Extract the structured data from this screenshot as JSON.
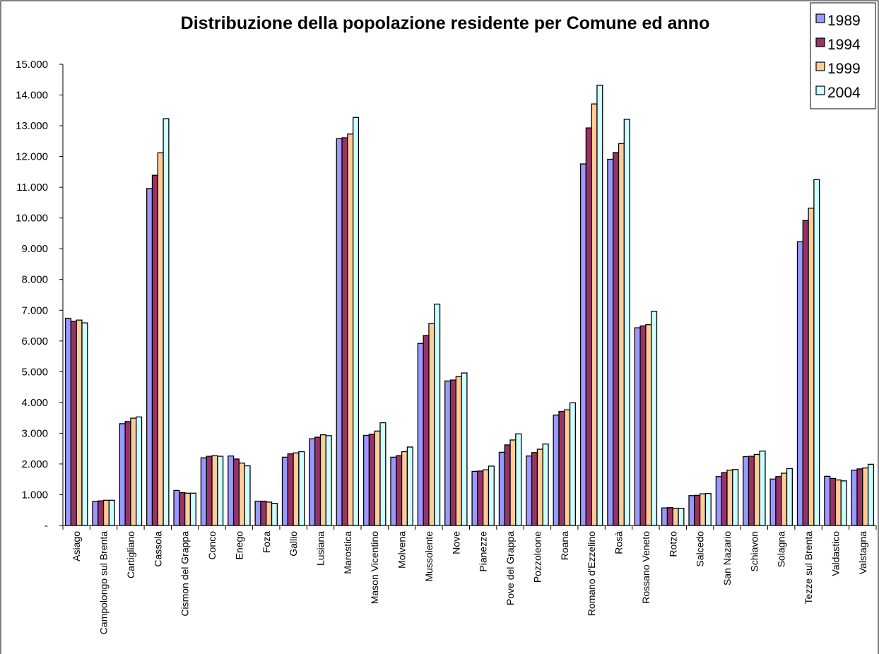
{
  "chart_data": {
    "type": "bar",
    "title": "Distribuzione della popolazione residente per Comune ed anno",
    "xlabel": "",
    "ylabel": "",
    "ylim": [
      0,
      15000
    ],
    "ytick_values": [
      0,
      1000,
      2000,
      3000,
      4000,
      5000,
      6000,
      7000,
      8000,
      9000,
      10000,
      11000,
      12000,
      13000,
      14000,
      15000
    ],
    "ytick_labels": [
      "-",
      "1.000",
      "2.000",
      "3.000",
      "4.000",
      "5.000",
      "6.000",
      "7.000",
      "8.000",
      "9.000",
      "10.000",
      "11.000",
      "12.000",
      "13.000",
      "14.000",
      "15.000"
    ],
    "grid": false,
    "legend_position": "top-right",
    "categories": [
      "Asiago",
      "Campolongo sul Brenta",
      "Cartigliano",
      "Cassola",
      "Cismon del Grappa",
      "Conco",
      "Enego",
      "Foza",
      "Gallio",
      "Lusiana",
      "Marostica",
      "Mason Vicentino",
      "Molvena",
      "Mussolente",
      "Nove",
      "Pianezze",
      "Pove del Grappa",
      "Pozzoleone",
      "Roana",
      "Romano d'Ezzelino",
      "Rosà",
      "Rossano Veneto",
      "Rotzo",
      "Salcedo",
      "San Nazario",
      "Schiavon",
      "Solagna",
      "Tezze sul Brenta",
      "Valdastico",
      "Valstagna"
    ],
    "series": [
      {
        "name": "1989",
        "color": "#9999ff",
        "values": [
          6740,
          780,
          3310,
          10960,
          1140,
          2200,
          2260,
          790,
          2220,
          2820,
          12580,
          2930,
          2220,
          5920,
          4700,
          1760,
          2380,
          2260,
          3590,
          11760,
          11910,
          6430,
          570,
          970,
          1590,
          2240,
          1510,
          9230,
          1600,
          1800
        ]
      },
      {
        "name": "1994",
        "color": "#993366",
        "values": [
          6640,
          800,
          3380,
          11390,
          1070,
          2250,
          2160,
          790,
          2330,
          2870,
          12610,
          2970,
          2270,
          6180,
          4730,
          1770,
          2620,
          2370,
          3710,
          12930,
          12130,
          6490,
          580,
          980,
          1720,
          2250,
          1590,
          9920,
          1530,
          1840
        ]
      },
      {
        "name": "1999",
        "color": "#ffcc99",
        "values": [
          6680,
          820,
          3490,
          12120,
          1050,
          2270,
          2030,
          760,
          2360,
          2950,
          12730,
          3070,
          2400,
          6570,
          4840,
          1810,
          2780,
          2480,
          3760,
          13710,
          12420,
          6530,
          560,
          1030,
          1800,
          2310,
          1700,
          10320,
          1480,
          1870
        ]
      },
      {
        "name": "2004",
        "color": "#ccffff",
        "values": [
          6590,
          820,
          3530,
          13230,
          1050,
          2250,
          1940,
          720,
          2400,
          2920,
          13270,
          3340,
          2550,
          7200,
          4960,
          1930,
          2980,
          2650,
          3990,
          14320,
          13210,
          6960,
          560,
          1040,
          1820,
          2420,
          1850,
          11250,
          1450,
          1990
        ]
      }
    ]
  }
}
